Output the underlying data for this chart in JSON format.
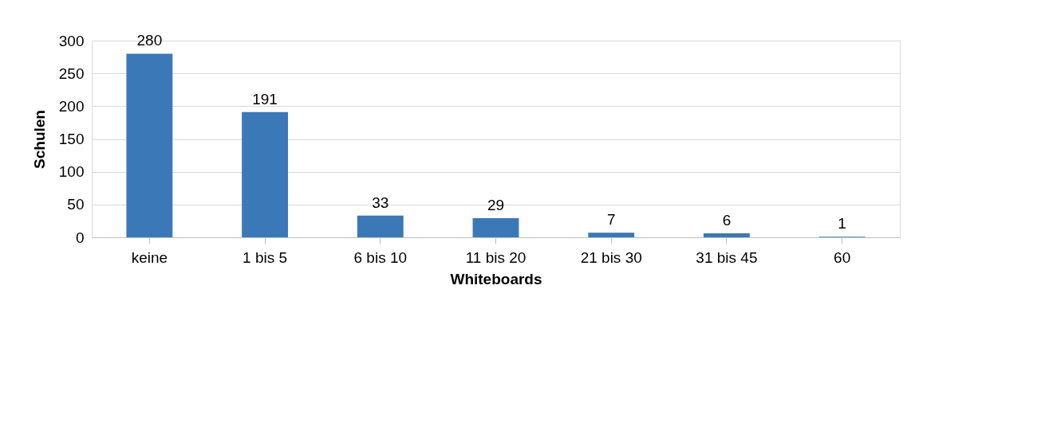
{
  "chart_data": {
    "type": "bar",
    "xlabel": "Whiteboards",
    "ylabel": "Schulen",
    "categories": [
      "keine",
      "1 bis 5",
      "6 bis 10",
      "11 bis 20",
      "21 bis 30",
      "31 bis 45",
      "60"
    ],
    "values": [
      280,
      191,
      33,
      29,
      7,
      6,
      1
    ],
    "color": "#3b78b8",
    "ylim": [
      0,
      300
    ],
    "yticks": [
      0,
      50,
      100,
      150,
      200,
      250,
      300
    ],
    "grid": "y",
    "data_labels": true
  }
}
